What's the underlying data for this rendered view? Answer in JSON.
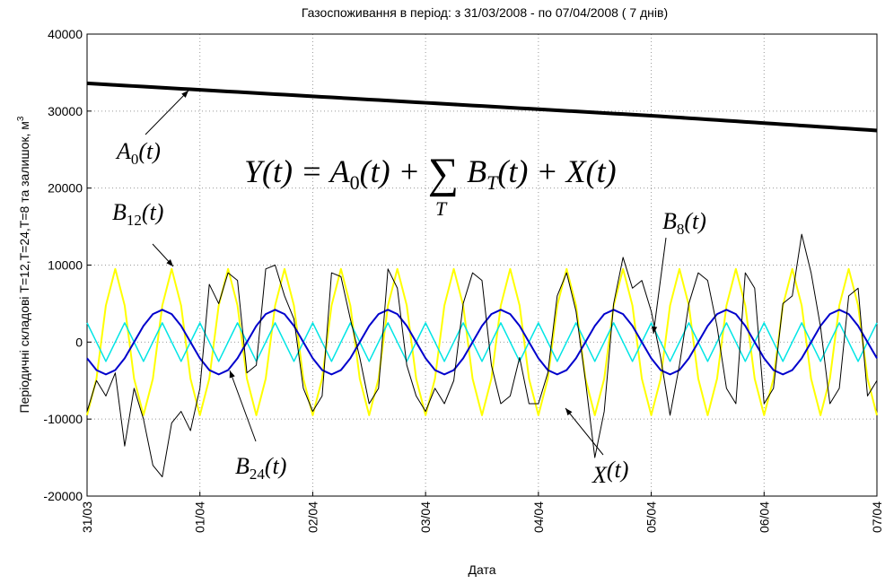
{
  "chart_data": {
    "type": "line",
    "title": "Газоспоживання в період: з 31/03/2008 - по 07/04/2008 ( 7 днів)",
    "xlabel": "Дата",
    "ylabel": "Періодичні складові T=12,T=24,T=8 та залишок, м",
    "ylabel_sup": "3",
    "formula": [
      "Y(t) = A",
      "0",
      "(t) + ",
      "∑",
      " B",
      "T",
      "(t) + X(t)"
    ],
    "formula_index": "T",
    "x": [
      0,
      2,
      4,
      6,
      8,
      10,
      12,
      14,
      16,
      18,
      20,
      22,
      24,
      26,
      28,
      30,
      32,
      34,
      36,
      38,
      40,
      42,
      44,
      46,
      48,
      50,
      52,
      54,
      56,
      58,
      60,
      62,
      64,
      66,
      68,
      70,
      72,
      74,
      76,
      78,
      80,
      82,
      84,
      86,
      88,
      90,
      92,
      94,
      96,
      98,
      100,
      102,
      104,
      106,
      108,
      110,
      112,
      114,
      116,
      118,
      120,
      122,
      124,
      126,
      128,
      130,
      132,
      134,
      136,
      138,
      140,
      142,
      144,
      146,
      148,
      150,
      152,
      154,
      156,
      158,
      160,
      162,
      164,
      166,
      168
    ],
    "xlim": [
      0,
      168
    ],
    "xticks": [
      {
        "value": 0,
        "label": "31/03"
      },
      {
        "value": 24,
        "label": "01/04"
      },
      {
        "value": 48,
        "label": "02/04"
      },
      {
        "value": 72,
        "label": "03/04"
      },
      {
        "value": 96,
        "label": "04/04"
      },
      {
        "value": 120,
        "label": "05/04"
      },
      {
        "value": 144,
        "label": "06/04"
      },
      {
        "value": 168,
        "label": "07/04"
      }
    ],
    "ylim": [
      -20000,
      40000
    ],
    "yticks": [
      -20000,
      -10000,
      0,
      10000,
      20000,
      30000,
      40000
    ],
    "grid": true,
    "series": [
      {
        "label": [
          "B",
          "12",
          "(t)"
        ],
        "color": "#ffff00",
        "width": 2,
        "values": [
          -9500,
          -4750,
          4750,
          9500,
          4750,
          -4750,
          -9500,
          -4750,
          4750,
          9500,
          4750,
          -4750,
          -9500,
          -4750,
          4750,
          9500,
          4750,
          -4750,
          -9500,
          -4750,
          4750,
          9500,
          4750,
          -4750,
          -9500,
          -4750,
          4750,
          9500,
          4750,
          -4750,
          -9500,
          -4750,
          4750,
          9500,
          4750,
          -4750,
          -9500,
          -4750,
          4750,
          9500,
          4750,
          -4750,
          -9500,
          -4750,
          4750,
          9500,
          4750,
          -4750,
          -9500,
          -4750,
          4750,
          9500,
          4750,
          -4750,
          -9500,
          -4750,
          4750,
          9500,
          4750,
          -4750,
          -9500,
          -4750,
          4750,
          9500,
          4750,
          -4750,
          -9500,
          -4750,
          4750,
          9500,
          4750,
          -4750,
          -9500,
          -4750,
          4750,
          9500,
          4750,
          -4750,
          -9500,
          -4750,
          4750,
          9500,
          4750,
          -4750,
          -9500
        ]
      },
      {
        "label": [
          "B",
          "8",
          "(t)"
        ],
        "color": "#00e5e5",
        "width": 1.5,
        "values": [
          2500,
          0,
          -2500,
          0,
          2500,
          0,
          -2500,
          0,
          2500,
          0,
          -2500,
          0,
          2500,
          0,
          -2500,
          0,
          2500,
          0,
          -2500,
          0,
          2500,
          0,
          -2500,
          0,
          2500,
          0,
          -2500,
          0,
          2500,
          0,
          -2500,
          0,
          2500,
          0,
          -2500,
          0,
          2500,
          0,
          -2500,
          0,
          2500,
          0,
          -2500,
          0,
          2500,
          0,
          -2500,
          0,
          2500,
          0,
          -2500,
          0,
          2500,
          0,
          -2500,
          0,
          2500,
          0,
          -2500,
          0,
          2500,
          0,
          -2500,
          0,
          2500,
          0,
          -2500,
          0,
          2500,
          0,
          -2500,
          0,
          2500,
          0,
          -2500,
          0,
          2500,
          0,
          -2500,
          0,
          2500,
          0,
          -2500,
          0,
          2500
        ]
      },
      {
        "label": [
          "B",
          "24",
          "(t)"
        ],
        "color": "#0000cc",
        "width": 2,
        "values": [
          -2100,
          -3637,
          -4200,
          -3637,
          -2100,
          0,
          2100,
          3637,
          4200,
          3637,
          2100,
          0,
          -2100,
          -3637,
          -4200,
          -3637,
          -2100,
          0,
          2100,
          3637,
          4200,
          3637,
          2100,
          0,
          -2100,
          -3637,
          -4200,
          -3637,
          -2100,
          0,
          2100,
          3637,
          4200,
          3637,
          2100,
          0,
          -2100,
          -3637,
          -4200,
          -3637,
          -2100,
          0,
          2100,
          3637,
          4200,
          3637,
          2100,
          0,
          -2100,
          -3637,
          -4200,
          -3637,
          -2100,
          0,
          2100,
          3637,
          4200,
          3637,
          2100,
          0,
          -2100,
          -3637,
          -4200,
          -3637,
          -2100,
          0,
          2100,
          3637,
          4200,
          3637,
          2100,
          0,
          -2100,
          -3637,
          -4200,
          -3637,
          -2100,
          0,
          2100,
          3637,
          4200,
          3637,
          2100,
          0,
          -2100
        ]
      },
      {
        "label": [
          "X",
          "",
          "(t)"
        ],
        "color": "#000000",
        "width": 1,
        "values": [
          -9000,
          -5000,
          -7000,
          -4000,
          -13500,
          -6000,
          -10000,
          -16000,
          -17500,
          -10500,
          -9000,
          -11500,
          -6000,
          7500,
          5000,
          9000,
          8000,
          -4000,
          -3000,
          9500,
          10000,
          6000,
          3000,
          -6000,
          -9000,
          -7000,
          9000,
          8500,
          3000,
          -2000,
          -8000,
          -6000,
          9500,
          7000,
          -3000,
          -7000,
          -9000,
          -6000,
          -8000,
          -5000,
          5000,
          9000,
          8000,
          -3000,
          -8000,
          -7000,
          -2000,
          -8000,
          -8000,
          -4000,
          6000,
          9000,
          4000,
          -5000,
          -15000,
          -9000,
          5000,
          11000,
          7000,
          8000,
          4000,
          -2000,
          -9500,
          -3000,
          5000,
          9000,
          8000,
          2000,
          -6000,
          -8000,
          9000,
          7000,
          -8000,
          -6000,
          5000,
          6000,
          14000,
          9000,
          2000,
          -8000,
          -6000,
          6000,
          7000,
          -7000,
          -5000
        ]
      },
      {
        "label": [
          "A",
          "0",
          "(t)"
        ],
        "color": "#000000",
        "width": 4,
        "values": [
          33600,
          33530,
          33460,
          33390,
          33320,
          33250,
          33180,
          33110,
          33040,
          32970,
          32900,
          32830,
          32760,
          32690,
          32620,
          32550,
          32480,
          32410,
          32340,
          32270,
          32200,
          32130,
          32060,
          31990,
          31920,
          31850,
          31780,
          31710,
          31640,
          31570,
          31500,
          31430,
          31360,
          31290,
          31220,
          31150,
          31080,
          31010,
          30940,
          30870,
          30800,
          30730,
          30660,
          30590,
          30520,
          30450,
          30380,
          30310,
          30240,
          30170,
          30100,
          30030,
          29960,
          29890,
          29820,
          29750,
          29680,
          29610,
          29540,
          29470,
          29400,
          29320,
          29240,
          29160,
          29080,
          29000,
          28920,
          28840,
          28760,
          28680,
          28600,
          28520,
          28440,
          28360,
          28280,
          28200,
          28120,
          28040,
          27960,
          27880,
          27800,
          27720,
          27640,
          27560,
          27480
        ]
      }
    ]
  }
}
